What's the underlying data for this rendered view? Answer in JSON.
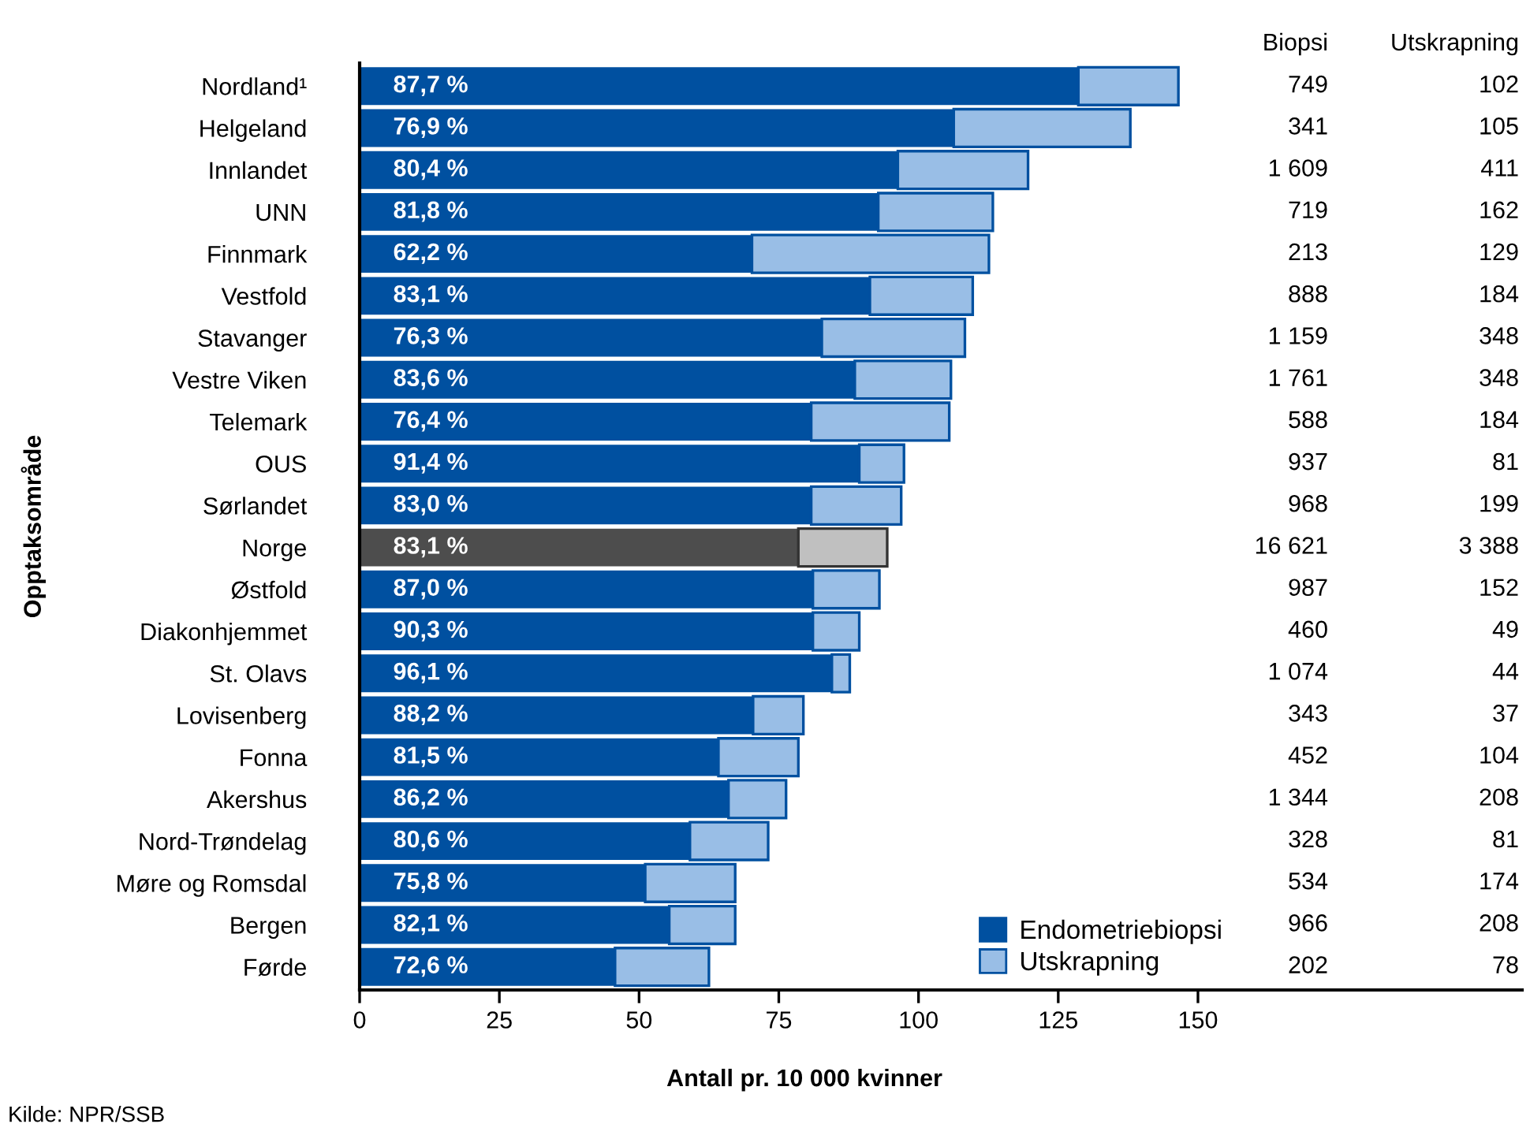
{
  "chart_data": {
    "type": "bar",
    "orientation": "horizontal",
    "stacked": true,
    "categories": [
      "Nordland¹",
      "Helgeland",
      "Innlandet",
      "UNN",
      "Finnmark",
      "Vestfold",
      "Stavanger",
      "Vestre Viken",
      "Telemark",
      "OUS",
      "Sørlandet",
      "Norge",
      "Østfold",
      "Diakonhjemmet",
      "St. Olavs",
      "Lovisenberg",
      "Fonna",
      "Akershus",
      "Nord-Trøndelag",
      "Møre og Romsdal",
      "Bergen",
      "Førde"
    ],
    "series": [
      {
        "name": "Endometriebiopsi",
        "color": "#0050a0",
        "colors": [
          "#0050a0",
          "#0050a0",
          "#0050a0",
          "#0050a0",
          "#0050a0",
          "#0050a0",
          "#0050a0",
          "#0050a0",
          "#0050a0",
          "#0050a0",
          "#0050a0",
          "#4d4d4d",
          "#0050a0",
          "#0050a0",
          "#0050a0",
          "#0050a0",
          "#0050a0",
          "#0050a0",
          "#0050a0",
          "#0050a0",
          "#0050a0",
          "#0050a0"
        ],
        "values": [
          128.6,
          106.3,
          96.3,
          92.8,
          70.2,
          91.3,
          82.7,
          88.6,
          80.8,
          89.4,
          80.8,
          78.5,
          81.1,
          81.1,
          84.5,
          70.4,
          64.2,
          66.0,
          59.1,
          51.1,
          55.4,
          45.7
        ]
      },
      {
        "name": "Utskrapning",
        "color": "#99bee6",
        "colors": [
          "#99bee6",
          "#99bee6",
          "#99bee6",
          "#99bee6",
          "#99bee6",
          "#99bee6",
          "#99bee6",
          "#99bee6",
          "#99bee6",
          "#99bee6",
          "#99bee6",
          "#c0c0c0",
          "#99bee6",
          "#99bee6",
          "#99bee6",
          "#99bee6",
          "#99bee6",
          "#99bee6",
          "#99bee6",
          "#99bee6",
          "#99bee6",
          "#99bee6"
        ],
        "values": [
          17.9,
          31.6,
          23.3,
          20.5,
          42.4,
          18.4,
          25.6,
          17.2,
          24.7,
          8.0,
          16.1,
          15.9,
          11.9,
          8.3,
          3.2,
          9.0,
          14.3,
          10.3,
          14.0,
          16.1,
          11.8,
          16.8
        ]
      }
    ],
    "xlim": [
      0,
      208
    ],
    "xticks": [
      0,
      25,
      50,
      75,
      100,
      125,
      150
    ],
    "xlabel": "Antall pr. 10 000 kvinner",
    "ylabel": "Opptaksområde",
    "legend": "bottom right",
    "grid": false,
    "annotations": [
      "Biopsi",
      "Utskrapning",
      "87,7 %",
      "749",
      "102",
      "76,9 %",
      "341",
      "105",
      "80,4 %",
      "1 609",
      "411",
      "81,8 %",
      "719",
      "162",
      "62,2 %",
      "213",
      "129",
      "83,1 %",
      "888",
      "184",
      "76,3 %",
      "1 159",
      "348",
      "83,6 %",
      "1 761",
      "348",
      "76,4 %",
      "588",
      "184",
      "91,4 %",
      "937",
      "81",
      "83,0 %",
      "968",
      "199",
      "83,1 %",
      "16 621",
      "3 388",
      "87,0 %",
      "987",
      "152",
      "90,3 %",
      "460",
      "49",
      "96,1 %",
      "1 074",
      "44",
      "88,2 %",
      "343",
      "37",
      "81,5 %",
      "452",
      "104",
      "86,2 %",
      "1 344",
      "208",
      "80,6 %",
      "328",
      "81",
      "75,8 %",
      "534",
      "174",
      "82,1 %",
      "966",
      "208",
      "72,6 %",
      "202",
      "78",
      "Kilde: NPR/SSB"
    ]
  }
}
